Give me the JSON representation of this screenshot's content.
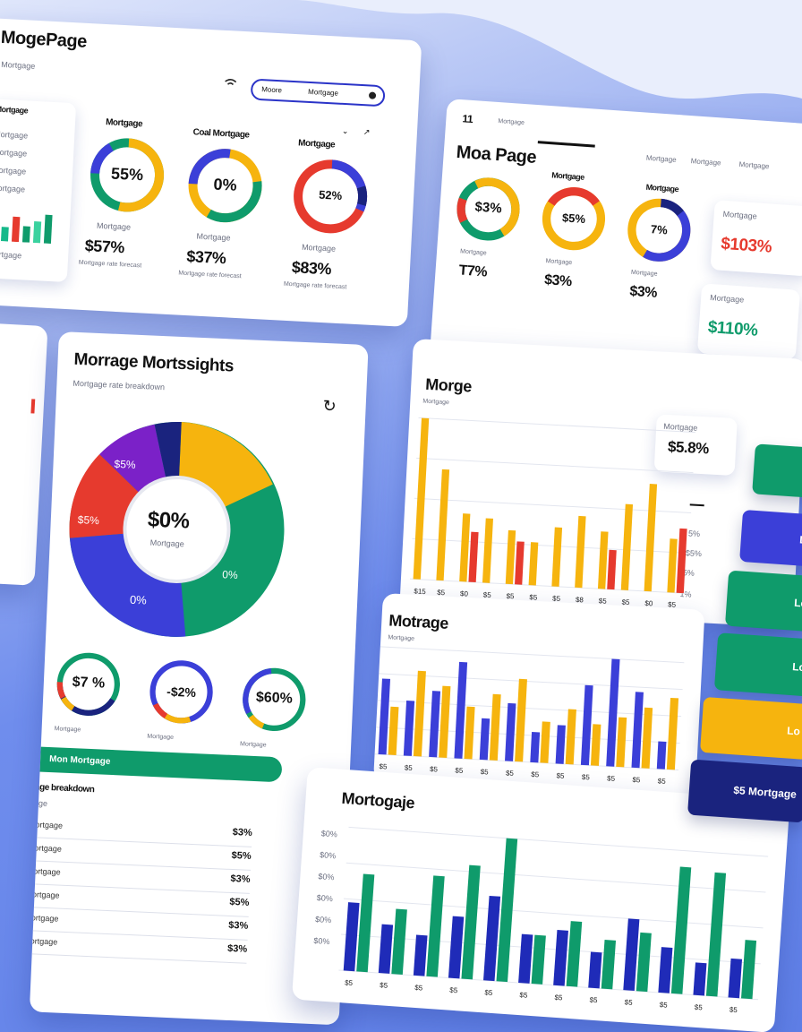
{
  "colors": {
    "green": "#0f9b6b",
    "blue": "#3b3fd8",
    "yellow": "#f6b40e",
    "red": "#e63a2e",
    "purple": "#7b21c8",
    "navy": "#1a237e",
    "background": "#6f8ded"
  },
  "card_a": {
    "title": "MogePage",
    "subtitle": "Mortgage",
    "search_button": "Moore",
    "search_placeholder": "Mortgage",
    "sidebar_heading": "Mortgage",
    "sidebar_rows": [
      "Mortgage",
      "Mortgage",
      "Mortgage",
      "Mortgage"
    ],
    "donuts": [
      {
        "heading": "Mortgage",
        "center": "55%",
        "value": "$57%",
        "caption": "Mortgage",
        "note": "Mortgage rate forecast"
      },
      {
        "heading": "Coal Mortgage",
        "center": "0%",
        "value": "$37%",
        "caption": "Mortgage",
        "note": "Mortgage rate forecast"
      },
      {
        "heading": "Mortgage",
        "center": "52%",
        "value": "$83%",
        "caption": "Mortgage",
        "note": "Mortgage rate forecast"
      }
    ]
  },
  "card_b": {
    "title": "Moa Page",
    "breadcrumb_icon": "11",
    "breadcrumb": "Mortgage",
    "tabs": [
      "Mortgage",
      "Mortgage",
      "Mortgage"
    ],
    "donuts": [
      {
        "heading": "Mortgage",
        "center": "$3%",
        "value": "T7%",
        "caption": "Mortgage"
      },
      {
        "heading": "Mortgage",
        "center": "$5%",
        "value": "$3%",
        "caption": "Mortgage"
      },
      {
        "heading": "Mortgage",
        "center": "7%",
        "value": "$3%",
        "caption": "Mortgage"
      }
    ],
    "stat_cards": [
      {
        "label": "Mortgage",
        "value": "$103%"
      },
      {
        "label": "Mortgage",
        "value": "$110%"
      }
    ]
  },
  "card_c": {
    "title": "Morrage Mortssights",
    "subtitle": "Mortgage rate breakdown",
    "pie_center": "$0%",
    "pie_center_sub": "Mortgage",
    "pie_labels": [
      "$5%",
      "$5%",
      "0%",
      "0%"
    ],
    "small_donuts": [
      {
        "center": "$7 %",
        "note": "Mortgage"
      },
      {
        "center": "-$2%",
        "note": "Mortgage"
      },
      {
        "center": "$60%",
        "note": "Mortgage"
      }
    ],
    "banner": "Mon Mortgage",
    "list_heading": "Mortgage breakdown",
    "list_sub": "Mortgage",
    "list_rows": [
      {
        "label": "Mortgage",
        "value": "$3%"
      },
      {
        "label": "Mortgage",
        "value": "$5%"
      },
      {
        "label": "Mortgage",
        "value": "$3%"
      },
      {
        "label": "Mortgage",
        "value": "$5%"
      },
      {
        "label": "Mortgage",
        "value": "$3%"
      },
      {
        "label": "Mortgage",
        "value": "$3%"
      }
    ]
  },
  "card_d": {
    "title": "Morge",
    "subtitle": "Mortgage",
    "stat_label": "Mortgage",
    "stat_value": "$5.8%",
    "side_ticks": [
      "5%",
      "$5%",
      "5%",
      "1%"
    ]
  },
  "card_e": {
    "title": "Motrage",
    "subtitle": "Mortgage"
  },
  "card_f": {
    "title": "Mortogaje",
    "y_ticks": [
      "$0%",
      "$0%",
      "$0%",
      "$0%",
      "$0%",
      "$0%"
    ]
  },
  "action_buttons": [
    "L",
    "Lo",
    "Lo",
    "Lo",
    "Lo",
    "$5 Mortgage"
  ],
  "chart_data": [
    {
      "type": "bar",
      "categories": [
        "$15",
        "$5",
        "$0",
        "$5",
        "$5",
        "$5",
        "$5",
        "$8",
        "$5",
        "$5",
        "$0",
        "$5"
      ],
      "series": [
        {
          "values": [
            90,
            62,
            38,
            36,
            30,
            24,
            33,
            40,
            32,
            48,
            60,
            30
          ]
        },
        {
          "values": [
            0,
            0,
            28,
            0,
            24,
            0,
            0,
            0,
            22,
            0,
            0,
            36
          ]
        }
      ]
    },
    {
      "type": "bar",
      "categories": [
        "$5",
        "$5",
        "$5",
        "$5",
        "$5",
        "$5",
        "$5",
        "$5",
        "$5",
        "$5",
        "$5",
        "$5"
      ],
      "series": [
        {
          "values": [
            55,
            40,
            48,
            70,
            30,
            42,
            22,
            28,
            58,
            78,
            55,
            20
          ]
        },
        {
          "values": [
            35,
            62,
            52,
            38,
            48,
            60,
            30,
            40,
            30,
            36,
            44,
            52
          ]
        }
      ]
    },
    {
      "type": "bar",
      "categories": [
        "$5",
        "$5",
        "$5",
        "$5",
        "$5",
        "$5",
        "$5",
        "$5",
        "$5",
        "$5",
        "$5",
        "$5"
      ],
      "series": [
        {
          "values": [
            42,
            30,
            25,
            38,
            52,
            30,
            34,
            22,
            44,
            28,
            20,
            24
          ]
        },
        {
          "values": [
            60,
            40,
            62,
            70,
            88,
            30,
            40,
            30,
            36,
            78,
            76,
            36
          ]
        }
      ]
    }
  ]
}
